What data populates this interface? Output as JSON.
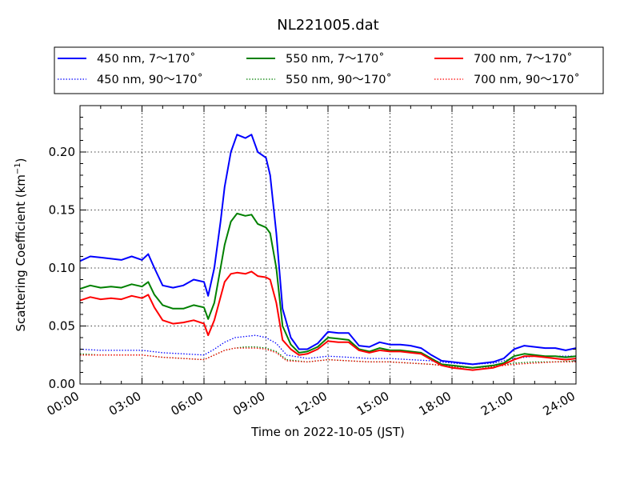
{
  "chart_data": {
    "type": "line",
    "title": "NL221005.dat",
    "xlabel": "Time on 2022-10-05 (JST)",
    "ylabel": "Scattering Coefficient (km",
    "ylabel_sup": "−1",
    "ylabel_end": ")",
    "xlim": [
      0,
      24
    ],
    "ylim": [
      0,
      0.24
    ],
    "x_ticks": [
      {
        "value": 0,
        "label": "00:00"
      },
      {
        "value": 3,
        "label": "03:00"
      },
      {
        "value": 6,
        "label": "06:00"
      },
      {
        "value": 9,
        "label": "09:00"
      },
      {
        "value": 12,
        "label": "12:00"
      },
      {
        "value": 15,
        "label": "15:00"
      },
      {
        "value": 18,
        "label": "18:00"
      },
      {
        "value": 21,
        "label": "21:00"
      },
      {
        "value": 24,
        "label": "24:00"
      }
    ],
    "y_ticks": [
      {
        "value": 0,
        "label": "0.00"
      },
      {
        "value": 0.05,
        "label": "0.05"
      },
      {
        "value": 0.1,
        "label": "0.10"
      },
      {
        "value": 0.15,
        "label": "0.15"
      },
      {
        "value": 0.2,
        "label": "0.20"
      }
    ],
    "grid": true,
    "legend_position": "top",
    "series": [
      {
        "name": "450 nm, 7～170˚",
        "color": "#0000ff",
        "style": "solid",
        "x": [
          0,
          0.5,
          1,
          1.5,
          2,
          2.5,
          3,
          3.3,
          3.6,
          4,
          4.5,
          5,
          5.5,
          6,
          6.2,
          6.5,
          6.8,
          7,
          7.3,
          7.6,
          8,
          8.3,
          8.6,
          9,
          9.2,
          9.5,
          9.8,
          10.2,
          10.6,
          11,
          11.5,
          12,
          12.5,
          13,
          13.5,
          14,
          14.5,
          15,
          15.5,
          16,
          16.5,
          17,
          17.5,
          18,
          18.5,
          19,
          19.5,
          20,
          20.5,
          21,
          21.5,
          22,
          22.5,
          23,
          23.5,
          24
        ],
        "y": [
          0.106,
          0.11,
          0.109,
          0.108,
          0.107,
          0.11,
          0.107,
          0.112,
          0.1,
          0.085,
          0.083,
          0.085,
          0.09,
          0.088,
          0.076,
          0.1,
          0.14,
          0.17,
          0.2,
          0.215,
          0.212,
          0.215,
          0.2,
          0.195,
          0.18,
          0.13,
          0.065,
          0.04,
          0.03,
          0.03,
          0.035,
          0.045,
          0.044,
          0.044,
          0.033,
          0.032,
          0.036,
          0.034,
          0.034,
          0.033,
          0.031,
          0.025,
          0.02,
          0.019,
          0.018,
          0.017,
          0.018,
          0.019,
          0.022,
          0.03,
          0.033,
          0.032,
          0.031,
          0.031,
          0.029,
          0.031
        ]
      },
      {
        "name": "450 nm, 90～170˚",
        "color": "#0000ff",
        "style": "dotted",
        "x": [
          0,
          1,
          2,
          3,
          4,
          5,
          6,
          6.5,
          7,
          7.5,
          8,
          8.5,
          9,
          9.5,
          10,
          11,
          12,
          13,
          14,
          15,
          16,
          17,
          18,
          19,
          20,
          21,
          22,
          23,
          24
        ],
        "y": [
          0.03,
          0.029,
          0.029,
          0.029,
          0.027,
          0.026,
          0.025,
          0.03,
          0.036,
          0.04,
          0.041,
          0.042,
          0.04,
          0.035,
          0.025,
          0.022,
          0.024,
          0.023,
          0.022,
          0.022,
          0.021,
          0.02,
          0.018,
          0.017,
          0.018,
          0.022,
          0.024,
          0.024,
          0.024
        ]
      },
      {
        "name": "550 nm, 7～170˚",
        "color": "#008000",
        "style": "solid",
        "x": [
          0,
          0.5,
          1,
          1.5,
          2,
          2.5,
          3,
          3.3,
          3.6,
          4,
          4.5,
          5,
          5.5,
          6,
          6.2,
          6.5,
          6.8,
          7,
          7.3,
          7.6,
          8,
          8.3,
          8.6,
          9,
          9.2,
          9.5,
          9.8,
          10.2,
          10.6,
          11,
          11.5,
          12,
          12.5,
          13,
          13.5,
          14,
          14.5,
          15,
          15.5,
          16,
          16.5,
          17,
          17.5,
          18,
          18.5,
          19,
          19.5,
          20,
          20.5,
          21,
          21.5,
          22,
          22.5,
          23,
          23.5,
          24
        ],
        "y": [
          0.082,
          0.085,
          0.083,
          0.084,
          0.083,
          0.086,
          0.084,
          0.088,
          0.077,
          0.068,
          0.065,
          0.065,
          0.068,
          0.066,
          0.056,
          0.07,
          0.1,
          0.12,
          0.14,
          0.147,
          0.145,
          0.146,
          0.138,
          0.135,
          0.13,
          0.1,
          0.05,
          0.034,
          0.027,
          0.028,
          0.032,
          0.04,
          0.039,
          0.038,
          0.03,
          0.028,
          0.031,
          0.029,
          0.029,
          0.028,
          0.027,
          0.022,
          0.017,
          0.016,
          0.015,
          0.014,
          0.015,
          0.016,
          0.018,
          0.024,
          0.026,
          0.025,
          0.024,
          0.024,
          0.023,
          0.024
        ]
      },
      {
        "name": "550 nm, 90～170˚",
        "color": "#008000",
        "style": "dotted",
        "x": [
          0,
          1,
          2,
          3,
          4,
          5,
          6,
          6.5,
          7,
          7.5,
          8,
          8.5,
          9,
          9.5,
          10,
          11,
          12,
          13,
          14,
          15,
          16,
          17,
          18,
          19,
          20,
          21,
          22,
          23,
          24
        ],
        "y": [
          0.026,
          0.025,
          0.025,
          0.025,
          0.023,
          0.022,
          0.021,
          0.025,
          0.029,
          0.031,
          0.032,
          0.032,
          0.031,
          0.028,
          0.021,
          0.019,
          0.021,
          0.02,
          0.019,
          0.019,
          0.018,
          0.017,
          0.015,
          0.014,
          0.015,
          0.018,
          0.019,
          0.019,
          0.02
        ]
      },
      {
        "name": "700 nm, 7～170˚",
        "color": "#ff0000",
        "style": "solid",
        "x": [
          0,
          0.5,
          1,
          1.5,
          2,
          2.5,
          3,
          3.3,
          3.6,
          4,
          4.5,
          5,
          5.5,
          6,
          6.2,
          6.5,
          6.8,
          7,
          7.3,
          7.6,
          8,
          8.3,
          8.6,
          9,
          9.2,
          9.5,
          9.8,
          10.2,
          10.6,
          11,
          11.5,
          12,
          12.5,
          13,
          13.5,
          14,
          14.5,
          15,
          15.5,
          16,
          16.5,
          17,
          17.5,
          18,
          18.5,
          19,
          19.5,
          20,
          20.5,
          21,
          21.5,
          22,
          22.5,
          23,
          23.5,
          24
        ],
        "y": [
          0.072,
          0.075,
          0.073,
          0.074,
          0.073,
          0.076,
          0.074,
          0.077,
          0.066,
          0.055,
          0.052,
          0.053,
          0.055,
          0.052,
          0.042,
          0.055,
          0.075,
          0.088,
          0.095,
          0.096,
          0.095,
          0.097,
          0.093,
          0.092,
          0.09,
          0.07,
          0.038,
          0.03,
          0.025,
          0.026,
          0.03,
          0.037,
          0.036,
          0.036,
          0.029,
          0.027,
          0.029,
          0.028,
          0.028,
          0.027,
          0.026,
          0.021,
          0.016,
          0.014,
          0.013,
          0.012,
          0.013,
          0.014,
          0.017,
          0.021,
          0.024,
          0.024,
          0.023,
          0.022,
          0.021,
          0.022
        ]
      },
      {
        "name": "700 nm, 90～170˚",
        "color": "#ff0000",
        "style": "dotted",
        "x": [
          0,
          1,
          2,
          3,
          4,
          5,
          6,
          6.5,
          7,
          7.5,
          8,
          8.5,
          9,
          9.5,
          10,
          11,
          12,
          13,
          14,
          15,
          16,
          17,
          18,
          19,
          20,
          21,
          22,
          23,
          24
        ],
        "y": [
          0.025,
          0.025,
          0.025,
          0.025,
          0.023,
          0.022,
          0.021,
          0.025,
          0.029,
          0.031,
          0.031,
          0.031,
          0.03,
          0.027,
          0.02,
          0.019,
          0.021,
          0.02,
          0.019,
          0.019,
          0.018,
          0.017,
          0.015,
          0.014,
          0.015,
          0.017,
          0.018,
          0.019,
          0.019
        ]
      }
    ]
  }
}
